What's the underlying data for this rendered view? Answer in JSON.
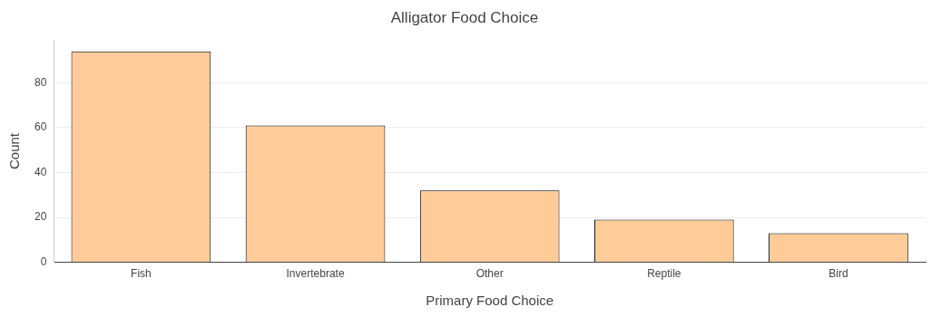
{
  "chart_data": {
    "type": "bar",
    "title": "Alligator Food Choice",
    "x_label": "Primary Food Choice",
    "y_label": "Count",
    "categories": [
      "Fish",
      "Invertebrate",
      "Other",
      "Reptile",
      "Bird"
    ],
    "values": [
      94,
      61,
      32,
      19,
      13
    ],
    "color": "#ffcc99",
    "ylim": [
      0,
      99
    ],
    "yticks": [
      0,
      20,
      40,
      60,
      80
    ],
    "grid": true
  }
}
